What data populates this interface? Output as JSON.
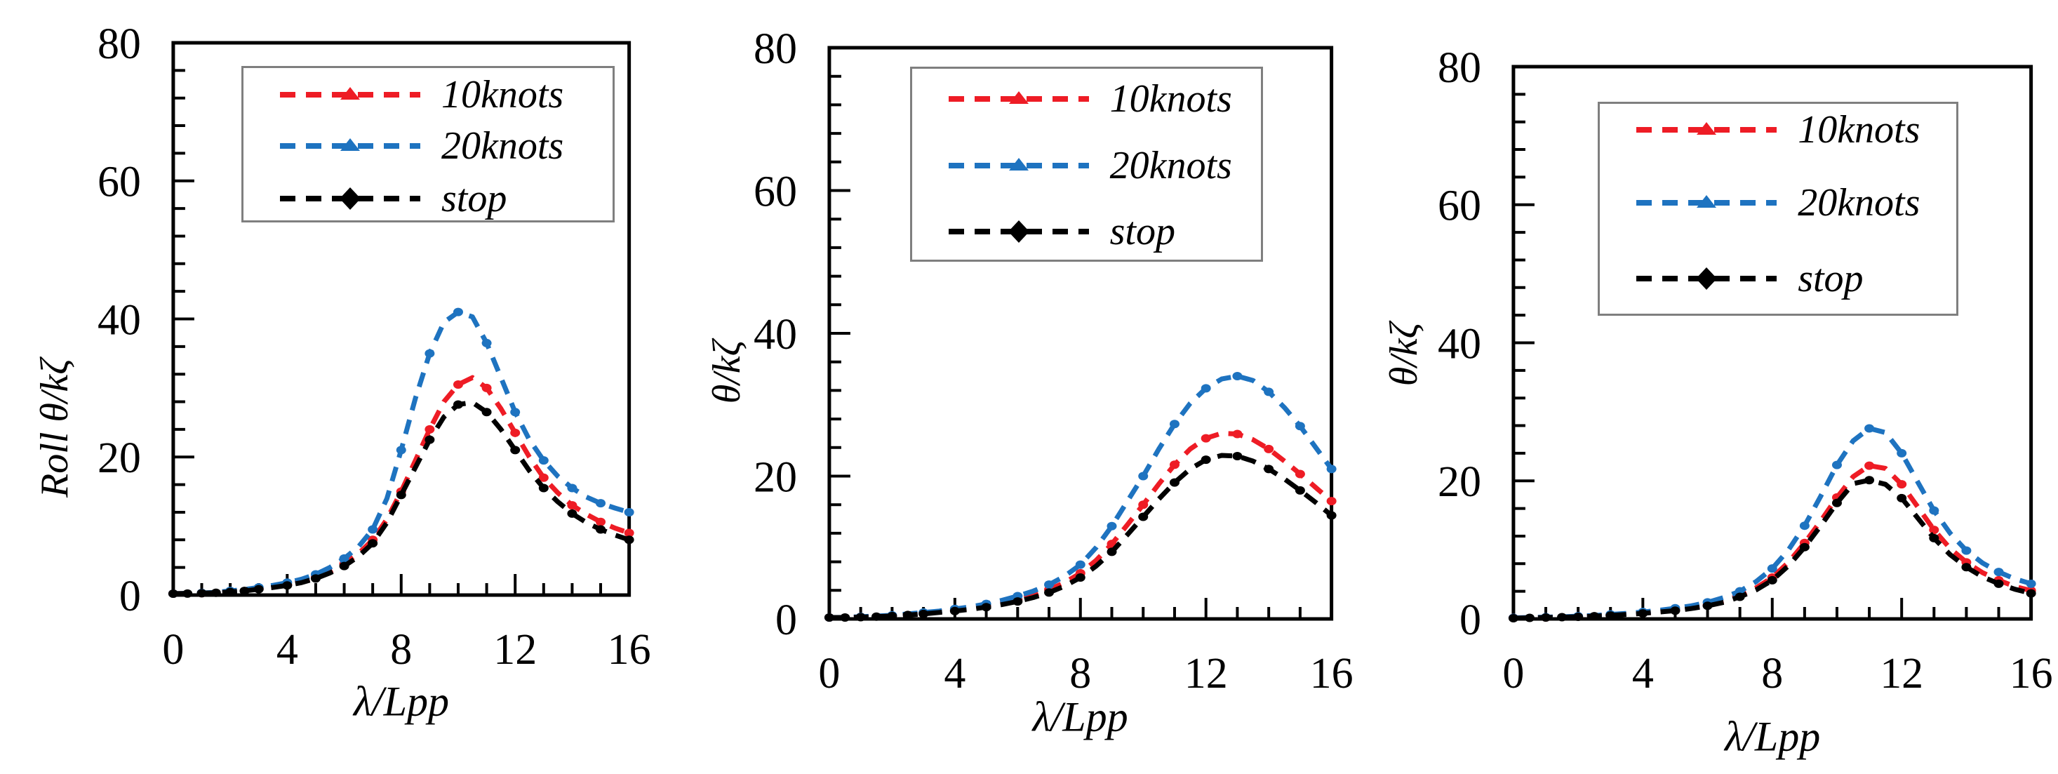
{
  "figure": {
    "background": "#ffffff",
    "axis_color": "#000000",
    "legend_border_color": "#7f7f7f"
  },
  "chart_data": [
    {
      "type": "line",
      "panel": "left",
      "title": "",
      "xlabel": "λ/Lpp",
      "ylabel": "Roll θ/kζ",
      "xlim": [
        0,
        16
      ],
      "ylim": [
        0,
        80
      ],
      "x_ticks": [
        0,
        4,
        8,
        12,
        16
      ],
      "y_ticks": [
        0,
        20,
        40,
        60,
        80
      ],
      "x_minor_step": 1,
      "y_minor_step": 4,
      "grid": false,
      "legend_position": "inside-top",
      "x": [
        0,
        0.5,
        1,
        1.5,
        2,
        2.5,
        3,
        3.5,
        4,
        4.5,
        5,
        5.5,
        6,
        6.5,
        7,
        7.5,
        8,
        8.5,
        9,
        9.5,
        10,
        10.5,
        11,
        11.5,
        12,
        12.5,
        13,
        13.5,
        14,
        14.5,
        15,
        15.5,
        16
      ],
      "series": [
        {
          "name": "10knots",
          "color": "#ee1c25",
          "line_style": "dashed",
          "values": [
            0.2,
            0.22,
            0.28,
            0.35,
            0.5,
            0.65,
            0.9,
            1.15,
            1.5,
            2,
            2.6,
            3.4,
            4.5,
            6,
            8,
            11,
            15,
            19.5,
            24,
            28,
            30.5,
            31.5,
            30,
            27,
            23.5,
            20,
            17,
            14.8,
            13,
            11.7,
            10.6,
            9.7,
            9
          ]
        },
        {
          "name": "20knots",
          "color": "#1e73c0",
          "line_style": "dashed",
          "values": [
            0.2,
            0.25,
            0.3,
            0.4,
            0.6,
            0.8,
            1.1,
            1.4,
            1.8,
            2.3,
            3,
            4,
            5.3,
            7,
            9.5,
            14,
            21,
            28.5,
            35,
            39.5,
            41,
            40.3,
            36.5,
            31.5,
            26.5,
            22.5,
            19.5,
            17.2,
            15.5,
            14.2,
            13.3,
            12.6,
            12
          ]
        },
        {
          "name": "stop",
          "color": "#000000",
          "line_style": "dashed",
          "values": [
            0.2,
            0.22,
            0.27,
            0.33,
            0.45,
            0.6,
            0.85,
            1.1,
            1.4,
            1.8,
            2.4,
            3.2,
            4.2,
            5.6,
            7.5,
            10.5,
            14.5,
            18.5,
            22.5,
            25.8,
            27.6,
            27.9,
            26.5,
            24,
            21,
            18,
            15.5,
            13.5,
            11.8,
            10.5,
            9.5,
            8.7,
            8
          ]
        }
      ]
    },
    {
      "type": "line",
      "panel": "middle",
      "title": "",
      "xlabel": "λ/Lpp",
      "ylabel": "θ/kζ",
      "xlim": [
        0,
        16
      ],
      "ylim": [
        0,
        80
      ],
      "x_ticks": [
        0,
        4,
        8,
        12,
        16
      ],
      "y_ticks": [
        0,
        20,
        40,
        60,
        80
      ],
      "x_minor_step": 1,
      "y_minor_step": 4,
      "grid": false,
      "legend_position": "inside-top",
      "x": [
        0,
        0.5,
        1,
        1.5,
        2,
        2.5,
        3,
        3.5,
        4,
        4.5,
        5,
        5.5,
        6,
        6.5,
        7,
        7.5,
        8,
        8.5,
        9,
        9.5,
        10,
        10.5,
        11,
        11.5,
        12,
        12.5,
        13,
        13.5,
        14,
        14.5,
        15,
        15.5,
        16
      ],
      "series": [
        {
          "name": "10knots",
          "color": "#ee1c25",
          "line_style": "dashed",
          "values": [
            0.2,
            0.2,
            0.28,
            0.35,
            0.45,
            0.6,
            0.8,
            1,
            1.2,
            1.5,
            1.8,
            2.2,
            2.7,
            3.3,
            4.1,
            5.1,
            6.4,
            8.2,
            10.5,
            13.2,
            16,
            18.9,
            21.6,
            23.8,
            25.3,
            26,
            25.9,
            25.1,
            23.8,
            22.1,
            20.3,
            18.4,
            16.5
          ]
        },
        {
          "name": "20knots",
          "color": "#1e73c0",
          "line_style": "dashed",
          "values": [
            0.2,
            0.22,
            0.3,
            0.4,
            0.5,
            0.7,
            0.9,
            1.1,
            1.4,
            1.7,
            2.1,
            2.6,
            3.2,
            3.9,
            4.8,
            6,
            7.6,
            10,
            13,
            16.5,
            20,
            23.8,
            27.3,
            30.2,
            32.3,
            33.6,
            34,
            33.4,
            31.8,
            29.6,
            27,
            24,
            21
          ]
        },
        {
          "name": "stop",
          "color": "#000000",
          "line_style": "dashed",
          "values": [
            0.2,
            0.2,
            0.25,
            0.32,
            0.4,
            0.55,
            0.7,
            0.9,
            1.1,
            1.35,
            1.65,
            2,
            2.45,
            3,
            3.7,
            4.6,
            5.8,
            7.4,
            9.4,
            11.8,
            14.3,
            16.8,
            19.1,
            21,
            22.3,
            22.9,
            22.8,
            22.1,
            21,
            19.6,
            18,
            16.3,
            14.5
          ]
        }
      ]
    },
    {
      "type": "line",
      "panel": "right",
      "title": "",
      "xlabel": "λ/Lpp",
      "ylabel": "θ/kζ",
      "xlim": [
        0,
        16
      ],
      "ylim": [
        0,
        80
      ],
      "x_ticks": [
        0,
        4,
        8,
        12,
        16
      ],
      "y_ticks": [
        0,
        20,
        40,
        60,
        80
      ],
      "x_minor_step": 1,
      "y_minor_step": 4,
      "grid": false,
      "legend_position": "inside-upper-middle",
      "x": [
        0,
        0.5,
        1,
        1.5,
        2,
        2.5,
        3,
        3.5,
        4,
        4.5,
        5,
        5.5,
        6,
        6.5,
        7,
        7.5,
        8,
        8.5,
        9,
        9.5,
        10,
        10.5,
        11,
        11.5,
        12,
        12.5,
        13,
        13.5,
        14,
        14.5,
        15,
        15.5,
        16
      ],
      "series": [
        {
          "name": "10knots",
          "color": "#ee1c25",
          "line_style": "dashed",
          "values": [
            0.15,
            0.18,
            0.22,
            0.28,
            0.35,
            0.45,
            0.55,
            0.7,
            0.85,
            1.05,
            1.3,
            1.6,
            2,
            2.6,
            3.4,
            4.5,
            6,
            8.2,
            11,
            14.2,
            17.6,
            20.6,
            22.2,
            21.8,
            19.5,
            16.2,
            12.9,
            10.2,
            8.2,
            6.7,
            5.6,
            4.7,
            4.1
          ]
        },
        {
          "name": "20knots",
          "color": "#1e73c0",
          "line_style": "dashed",
          "values": [
            0.15,
            0.2,
            0.25,
            0.3,
            0.4,
            0.5,
            0.65,
            0.8,
            1,
            1.25,
            1.55,
            1.9,
            2.4,
            3.1,
            4,
            5.4,
            7.3,
            10,
            13.5,
            17.8,
            22.3,
            25.8,
            27.6,
            27,
            24,
            19.8,
            15.7,
            12.4,
            9.9,
            8.1,
            6.8,
            5.8,
            5.1
          ]
        },
        {
          "name": "stop",
          "color": "#000000",
          "line_style": "dashed",
          "values": [
            0.1,
            0.15,
            0.2,
            0.25,
            0.3,
            0.4,
            0.5,
            0.65,
            0.8,
            1,
            1.2,
            1.5,
            1.9,
            2.4,
            3.2,
            4.2,
            5.6,
            7.7,
            10.4,
            13.5,
            16.8,
            19.6,
            20.1,
            19.5,
            17.5,
            14.6,
            11.7,
            9.3,
            7.5,
            6.1,
            5.1,
            4.3,
            3.7
          ]
        }
      ]
    }
  ]
}
